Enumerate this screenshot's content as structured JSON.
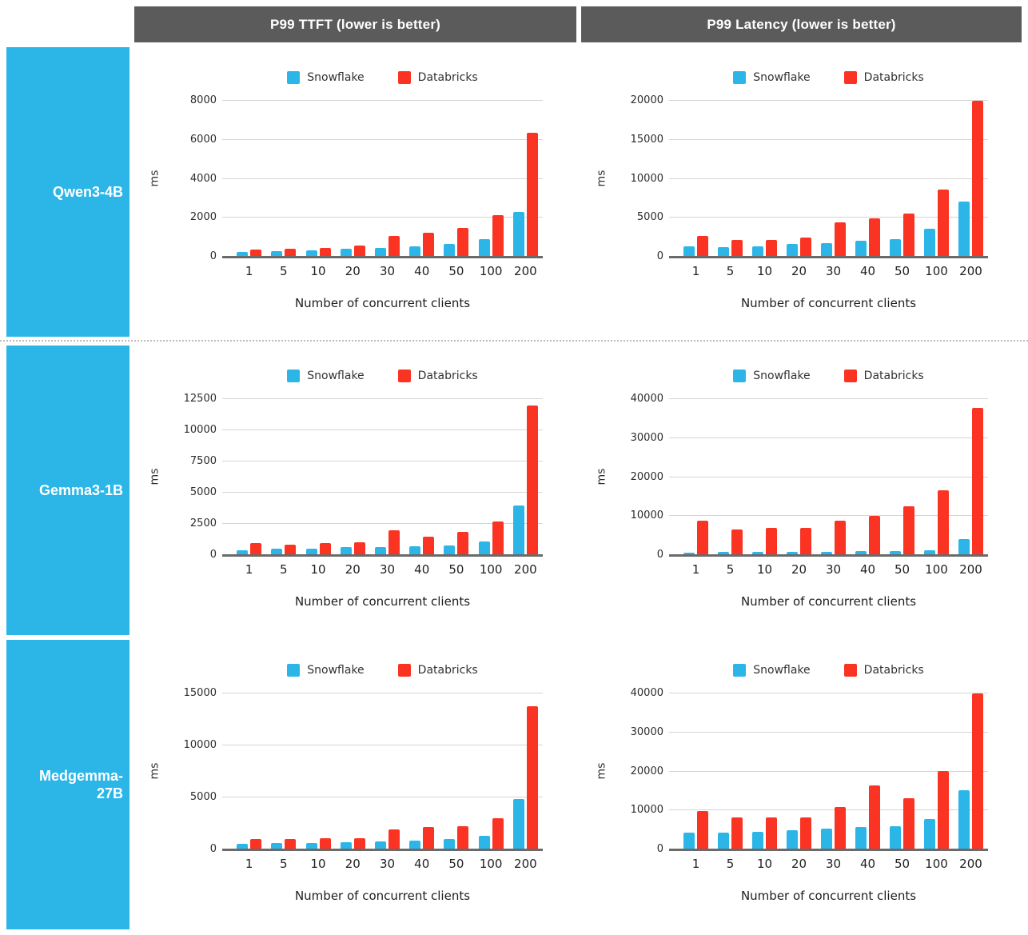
{
  "colors": {
    "snowflake_blue": "#2cb6e8",
    "databricks_red": "#fa3323",
    "sidebar_blue": "#2cb6e8",
    "header_gray": "#5b5b5b",
    "gridline": "#d5d5d5",
    "baseline": "#6a6a6a"
  },
  "column_headers": {
    "ttft": "P99 TTFT (lower is better)",
    "latency": "P99 Latency (lower is better)"
  },
  "row_labels": {
    "qwen": "Qwen3-4B",
    "gemma": "Gemma3-1B",
    "medgemma": "Medgemma-\n27B"
  },
  "legend": [
    "Snowflake",
    "Databricks"
  ],
  "axis": {
    "y_unit": "ms",
    "x_title": "Number of concurrent clients",
    "categories": [
      "1",
      "5",
      "10",
      "20",
      "30",
      "40",
      "50",
      "100",
      "200"
    ]
  },
  "chart_data": [
    {
      "type": "bar",
      "model": "Qwen3-4B",
      "metric": "P99 TTFT",
      "categories": [
        1,
        5,
        10,
        20,
        30,
        40,
        50,
        100,
        200
      ],
      "series": [
        {
          "name": "Snowflake",
          "values": [
            200,
            240,
            280,
            350,
            400,
            500,
            600,
            850,
            2240
          ]
        },
        {
          "name": "Databricks",
          "values": [
            310,
            360,
            420,
            550,
            1040,
            1190,
            1420,
            2090,
            6330
          ]
        }
      ],
      "xlabel": "Number of concurrent clients",
      "ylabel": "ms",
      "ylim": [
        0,
        8000
      ],
      "yticks": [
        0,
        2000,
        4000,
        6000,
        8000
      ],
      "grid": true,
      "legend_position": "top"
    },
    {
      "type": "bar",
      "model": "Qwen3-4B",
      "metric": "P99 Latency",
      "categories": [
        1,
        5,
        10,
        20,
        30,
        40,
        50,
        100,
        200
      ],
      "series": [
        {
          "name": "Snowflake",
          "values": [
            1250,
            1100,
            1250,
            1500,
            1650,
            1900,
            2150,
            3500,
            7000
          ]
        },
        {
          "name": "Databricks",
          "values": [
            2550,
            2050,
            2050,
            2400,
            4300,
            4800,
            5450,
            8500,
            19900
          ]
        }
      ],
      "xlabel": "Number of concurrent clients",
      "ylabel": "ms",
      "ylim": [
        0,
        20000
      ],
      "yticks": [
        0,
        5000,
        10000,
        15000,
        20000
      ],
      "grid": true,
      "legend_position": "top"
    },
    {
      "type": "bar",
      "model": "Gemma3-1B",
      "metric": "P99 TTFT",
      "categories": [
        1,
        5,
        10,
        20,
        30,
        40,
        50,
        100,
        200
      ],
      "series": [
        {
          "name": "Snowflake",
          "values": [
            350,
            450,
            450,
            600,
            600,
            650,
            730,
            1050,
            3900
          ]
        },
        {
          "name": "Databricks",
          "values": [
            880,
            800,
            880,
            970,
            1950,
            1400,
            1800,
            2600,
            11950
          ]
        }
      ],
      "xlabel": "Number of concurrent clients",
      "ylabel": "ms",
      "ylim": [
        0,
        12500
      ],
      "yticks": [
        0,
        2500,
        5000,
        7500,
        10000,
        12500
      ],
      "grid": true,
      "legend_position": "top"
    },
    {
      "type": "bar",
      "model": "Gemma3-1B",
      "metric": "P99 Latency",
      "categories": [
        1,
        5,
        10,
        20,
        30,
        40,
        50,
        100,
        200
      ],
      "series": [
        {
          "name": "Snowflake",
          "values": [
            350,
            550,
            550,
            550,
            600,
            750,
            800,
            1050,
            3800
          ]
        },
        {
          "name": "Databricks",
          "values": [
            8600,
            6400,
            6800,
            6800,
            8600,
            9800,
            12400,
            16500,
            37500
          ]
        }
      ],
      "xlabel": "Number of concurrent clients",
      "ylabel": "ms",
      "ylim": [
        0,
        40000
      ],
      "yticks": [
        0,
        10000,
        20000,
        30000,
        40000
      ],
      "grid": true,
      "legend_position": "top"
    },
    {
      "type": "bar",
      "model": "Medgemma-27B",
      "metric": "P99 TTFT",
      "categories": [
        1,
        5,
        10,
        20,
        30,
        40,
        50,
        100,
        200
      ],
      "series": [
        {
          "name": "Snowflake",
          "values": [
            450,
            550,
            550,
            620,
            720,
            800,
            900,
            1250,
            4800
          ]
        },
        {
          "name": "Databricks",
          "values": [
            900,
            900,
            980,
            1000,
            1850,
            2050,
            2150,
            2900,
            13700
          ]
        }
      ],
      "xlabel": "Number of concurrent clients",
      "ylabel": "ms",
      "ylim": [
        0,
        15000
      ],
      "yticks": [
        0,
        5000,
        10000,
        15000
      ],
      "grid": true,
      "legend_position": "top"
    },
    {
      "type": "bar",
      "model": "Medgemma-27B",
      "metric": "P99 Latency",
      "categories": [
        1,
        5,
        10,
        20,
        30,
        40,
        50,
        100,
        200
      ],
      "series": [
        {
          "name": "Snowflake",
          "values": [
            4100,
            4100,
            4300,
            4800,
            5100,
            5500,
            5700,
            7600,
            15000
          ]
        },
        {
          "name": "Databricks",
          "values": [
            9600,
            8100,
            7900,
            7900,
            10600,
            16200,
            13000,
            19900,
            39800
          ]
        }
      ],
      "xlabel": "Number of concurrent clients",
      "ylabel": "ms",
      "ylim": [
        0,
        40000
      ],
      "yticks": [
        0,
        10000,
        20000,
        30000,
        40000
      ],
      "grid": true,
      "legend_position": "top"
    }
  ]
}
